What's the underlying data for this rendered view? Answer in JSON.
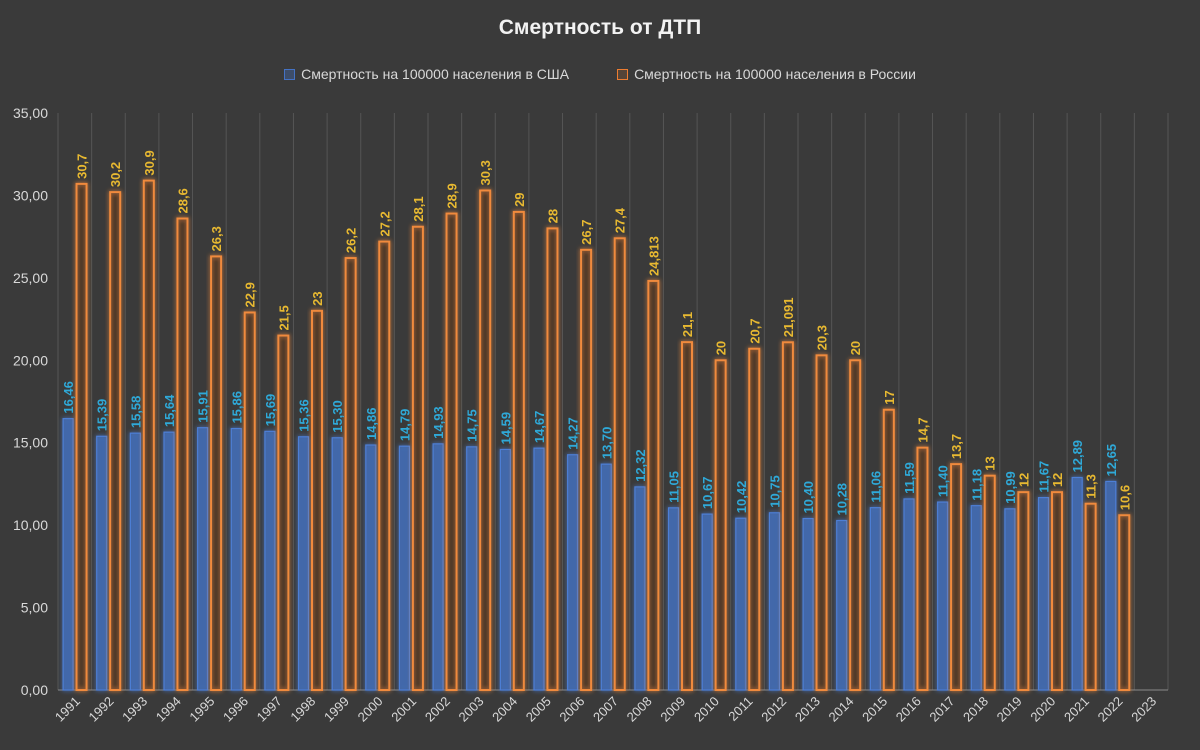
{
  "chart_data": {
    "type": "bar",
    "title": "Смертность от ДТП",
    "xlabel": "",
    "ylabel": "",
    "ylim": [
      0,
      35
    ],
    "yticks": [
      "0,00",
      "5,00",
      "10,00",
      "15,00",
      "20,00",
      "25,00",
      "30,00",
      "35,00"
    ],
    "ytick_values": [
      0,
      5,
      10,
      15,
      20,
      25,
      30,
      35
    ],
    "grid": "vertical",
    "legend_position": "top",
    "categories": [
      "1991",
      "1992",
      "1993",
      "1994",
      "1995",
      "1996",
      "1997",
      "1998",
      "1999",
      "2000",
      "2001",
      "2002",
      "2003",
      "2004",
      "2005",
      "2006",
      "2007",
      "2008",
      "2009",
      "2010",
      "2011",
      "2012",
      "2013",
      "2014",
      "2015",
      "2016",
      "2017",
      "2018",
      "2019",
      "2020",
      "2021",
      "2022",
      "2023"
    ],
    "series": [
      {
        "name": "Смертность на 100000 населения в США",
        "color": "#4472c4",
        "label_color": "#2fa9d8",
        "values": [
          16.46,
          15.39,
          15.58,
          15.64,
          15.91,
          15.86,
          15.69,
          15.36,
          15.3,
          14.86,
          14.79,
          14.93,
          14.75,
          14.59,
          14.67,
          14.27,
          13.7,
          12.32,
          11.05,
          10.67,
          10.42,
          10.75,
          10.4,
          10.28,
          11.06,
          11.59,
          11.4,
          11.18,
          10.99,
          11.67,
          12.89,
          12.65,
          null
        ],
        "labels": [
          "16,46",
          "15,39",
          "15,58",
          "15,64",
          "15,91",
          "15,86",
          "15,69",
          "15,36",
          "15,30",
          "14,86",
          "14,79",
          "14,93",
          "14,75",
          "14,59",
          "14,67",
          "14,27",
          "13,70",
          "12,32",
          "11,05",
          "10,67",
          "10,42",
          "10,75",
          "10,40",
          "10,28",
          "11,06",
          "11,59",
          "11,40",
          "11,18",
          "10,99",
          "11,67",
          "12,89",
          "12,65",
          ""
        ]
      },
      {
        "name": "Смертность на 100000 населения в России",
        "color": "#ed7d31",
        "label_color": "#e8b931",
        "values": [
          30.7,
          30.2,
          30.9,
          28.6,
          26.3,
          22.9,
          21.5,
          23,
          26.2,
          27.2,
          28.1,
          28.9,
          30.3,
          29,
          28,
          26.7,
          27.4,
          24.813,
          21.1,
          20,
          20.7,
          21.091,
          20.3,
          20,
          17,
          14.7,
          13.7,
          13,
          12,
          12,
          11.3,
          10.6,
          null
        ],
        "labels": [
          "30,7",
          "30,2",
          "30,9",
          "28,6",
          "26,3",
          "22,9",
          "21,5",
          "23",
          "26,2",
          "27,2",
          "28,1",
          "28,9",
          "30,3",
          "29",
          "28",
          "26,7",
          "27,4",
          "24,813",
          "21,1",
          "20",
          "20,7",
          "21,091",
          "20,3",
          "20",
          "17",
          "14,7",
          "13,7",
          "13",
          "12",
          "12",
          "11,3",
          "10,6",
          ""
        ]
      }
    ]
  }
}
